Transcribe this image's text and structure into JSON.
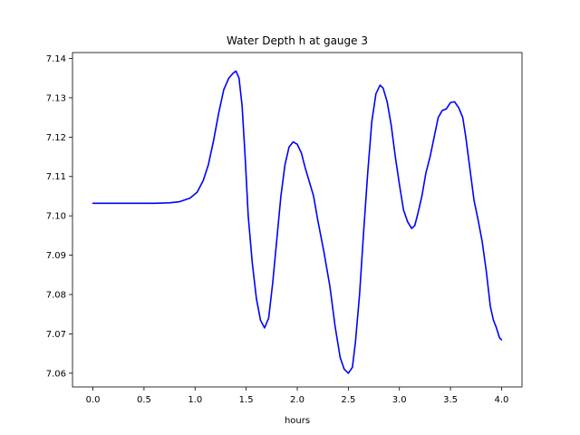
{
  "chart_data": {
    "type": "line",
    "title": "Water Depth h at gauge 3",
    "xlabel": "hours",
    "ylabel": "",
    "xlim": [
      -0.2,
      4.2
    ],
    "ylim": [
      7.0565,
      7.1415
    ],
    "xticks": [
      0.0,
      0.5,
      1.0,
      1.5,
      2.0,
      2.5,
      3.0,
      3.5,
      4.0
    ],
    "xtick_labels": [
      "0.0",
      "0.5",
      "1.0",
      "1.5",
      "2.0",
      "2.5",
      "3.0",
      "3.5",
      "4.0"
    ],
    "yticks": [
      7.06,
      7.07,
      7.08,
      7.09,
      7.1,
      7.11,
      7.12,
      7.13,
      7.14
    ],
    "ytick_labels": [
      "7.06",
      "7.07",
      "7.08",
      "7.09",
      "7.10",
      "7.11",
      "7.12",
      "7.13",
      "7.14"
    ],
    "grid": false,
    "series": [
      {
        "color": "#0000ff",
        "points": [
          [
            0.0,
            7.1032
          ],
          [
            0.3,
            7.1032
          ],
          [
            0.6,
            7.1032
          ],
          [
            0.75,
            7.1033
          ],
          [
            0.85,
            7.1036
          ],
          [
            0.95,
            7.1045
          ],
          [
            1.02,
            7.106
          ],
          [
            1.08,
            7.109
          ],
          [
            1.13,
            7.113
          ],
          [
            1.18,
            7.119
          ],
          [
            1.23,
            7.126
          ],
          [
            1.28,
            7.132
          ],
          [
            1.33,
            7.135
          ],
          [
            1.37,
            7.1362
          ],
          [
            1.4,
            7.1368
          ],
          [
            1.43,
            7.135
          ],
          [
            1.46,
            7.128
          ],
          [
            1.49,
            7.115
          ],
          [
            1.52,
            7.1
          ],
          [
            1.56,
            7.088
          ],
          [
            1.6,
            7.079
          ],
          [
            1.64,
            7.0735
          ],
          [
            1.68,
            7.0715
          ],
          [
            1.72,
            7.074
          ],
          [
            1.76,
            7.083
          ],
          [
            1.8,
            7.094
          ],
          [
            1.84,
            7.105
          ],
          [
            1.88,
            7.113
          ],
          [
            1.92,
            7.1175
          ],
          [
            1.96,
            7.1188
          ],
          [
            2.0,
            7.1182
          ],
          [
            2.04,
            7.116
          ],
          [
            2.08,
            7.112
          ],
          [
            2.12,
            7.1085
          ],
          [
            2.16,
            7.105
          ],
          [
            2.2,
            7.099
          ],
          [
            2.26,
            7.091
          ],
          [
            2.32,
            7.082
          ],
          [
            2.37,
            7.072
          ],
          [
            2.42,
            7.064
          ],
          [
            2.46,
            7.061
          ],
          [
            2.5,
            7.06
          ],
          [
            2.54,
            7.0615
          ],
          [
            2.57,
            7.068
          ],
          [
            2.61,
            7.08
          ],
          [
            2.65,
            7.096
          ],
          [
            2.69,
            7.111
          ],
          [
            2.73,
            7.124
          ],
          [
            2.77,
            7.131
          ],
          [
            2.81,
            7.1332
          ],
          [
            2.84,
            7.1325
          ],
          [
            2.88,
            7.129
          ],
          [
            2.92,
            7.123
          ],
          [
            2.96,
            7.115
          ],
          [
            3.0,
            7.108
          ],
          [
            3.04,
            7.1015
          ],
          [
            3.08,
            7.0985
          ],
          [
            3.12,
            7.0968
          ],
          [
            3.15,
            7.0975
          ],
          [
            3.18,
            7.1005
          ],
          [
            3.22,
            7.105
          ],
          [
            3.26,
            7.111
          ],
          [
            3.3,
            7.115
          ],
          [
            3.34,
            7.12
          ],
          [
            3.38,
            7.125
          ],
          [
            3.42,
            7.1268
          ],
          [
            3.46,
            7.1272
          ],
          [
            3.5,
            7.1288
          ],
          [
            3.54,
            7.129
          ],
          [
            3.58,
            7.1275
          ],
          [
            3.62,
            7.125
          ],
          [
            3.65,
            7.12
          ],
          [
            3.69,
            7.112
          ],
          [
            3.73,
            7.104
          ],
          [
            3.77,
            7.099
          ],
          [
            3.81,
            7.0935
          ],
          [
            3.85,
            7.086
          ],
          [
            3.89,
            7.077
          ],
          [
            3.92,
            7.0735
          ],
          [
            3.95,
            7.0715
          ],
          [
            3.98,
            7.069
          ],
          [
            4.0,
            7.0685
          ]
        ]
      }
    ]
  }
}
